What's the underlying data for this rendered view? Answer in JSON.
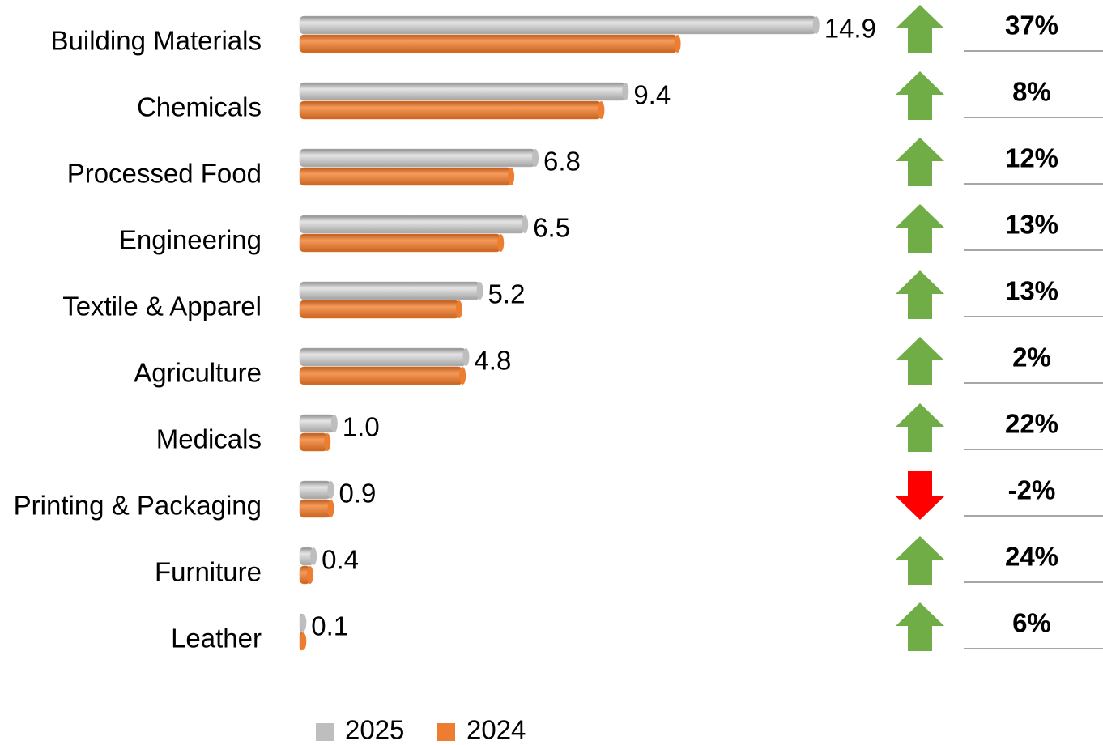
{
  "chart_data": {
    "type": "bar",
    "orientation": "horizontal",
    "categories": [
      "Building Materials",
      "Chemicals",
      "Processed Food",
      "Engineering",
      "Textile & Apparel",
      "Agriculture",
      "Medicals",
      "Printing & Packaging",
      "Furniture",
      "Leather"
    ],
    "series": [
      {
        "name": "2025",
        "color": "#bfbebf",
        "values": [
          14.9,
          9.4,
          6.8,
          6.5,
          5.2,
          4.8,
          1.0,
          0.9,
          0.4,
          0.1
        ],
        "value_labels": [
          "14.9",
          "9.4",
          "6.8",
          "6.5",
          "5.2",
          "4.8",
          "1.0",
          "0.9",
          "0.4",
          "0.1"
        ]
      },
      {
        "name": "2024",
        "color": "#ed7d31",
        "values": [
          10.9,
          8.7,
          6.1,
          5.8,
          4.6,
          4.7,
          0.8,
          0.9,
          0.3,
          0.1
        ]
      }
    ],
    "growth": {
      "values": [
        37,
        8,
        12,
        13,
        13,
        2,
        22,
        -2,
        24,
        6
      ],
      "value_labels": [
        "37%",
        "8%",
        "12%",
        "13%",
        "13%",
        "2%",
        "22%",
        "-2%",
        "24%",
        "6%"
      ],
      "up_color": "#70ad47",
      "down_color": "#ff0000"
    },
    "xlim": [
      0,
      15
    ],
    "legend": "bottom"
  }
}
